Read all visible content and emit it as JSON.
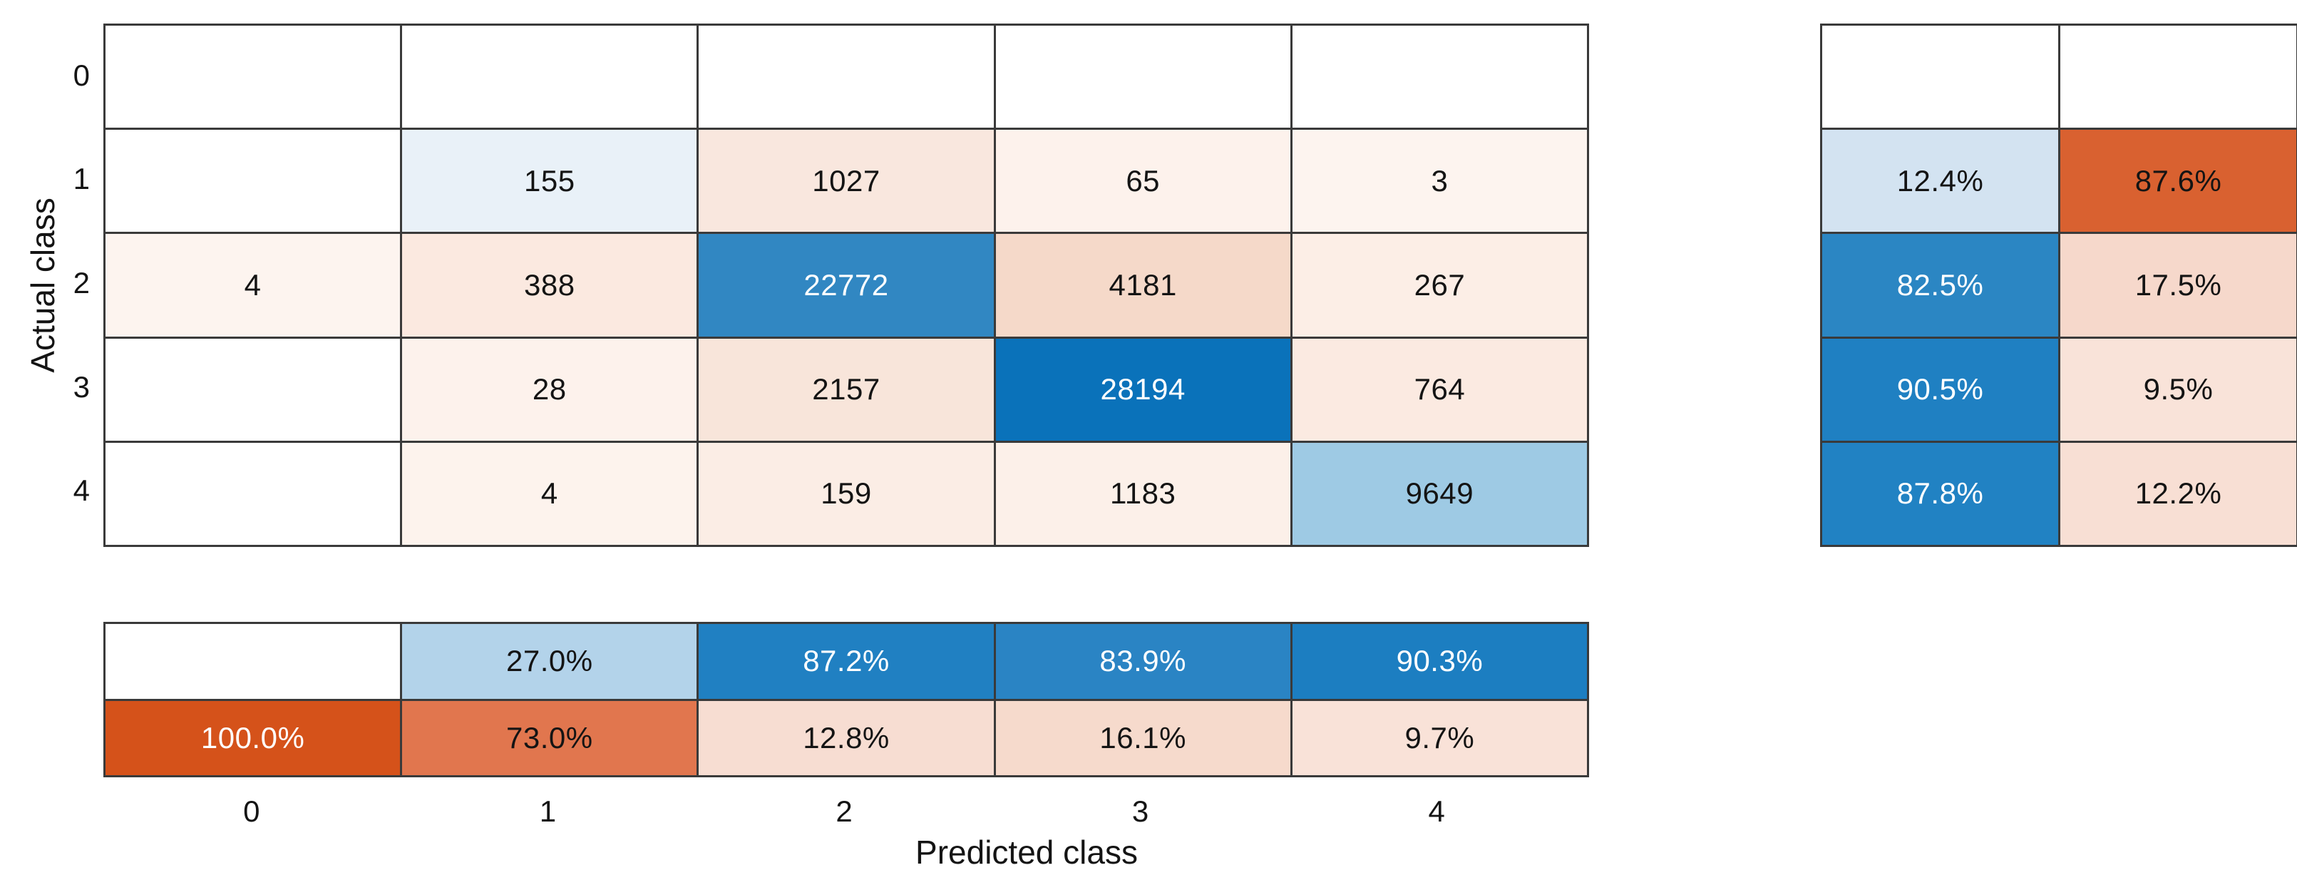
{
  "chart_data": {
    "type": "heatmap",
    "subtype": "confusion-matrix",
    "title": "",
    "xlabel": "Predicted class",
    "ylabel": "Actual class",
    "x_tick_labels": [
      "0",
      "1",
      "2",
      "3",
      "4"
    ],
    "y_tick_labels": [
      "0",
      "1",
      "2",
      "3",
      "4"
    ],
    "matrix_rows_are_actual_class": true,
    "matrix": [
      [
        null,
        null,
        null,
        null,
        null
      ],
      [
        null,
        155,
        1027,
        65,
        3
      ],
      [
        4,
        388,
        22772,
        4181,
        267
      ],
      [
        null,
        28,
        2157,
        28194,
        764
      ],
      [
        null,
        4,
        159,
        1183,
        9649
      ]
    ],
    "row_summary": {
      "description": "right column summary per actual class: correct % / incorrect %",
      "values": [
        [
          null,
          null
        ],
        [
          12.4,
          87.6
        ],
        [
          82.5,
          17.5
        ],
        [
          90.5,
          9.5
        ],
        [
          87.8,
          12.2
        ]
      ]
    },
    "column_summary": {
      "description": "bottom row summary per predicted class: correct % (top) / incorrect % (bottom)",
      "values": [
        [
          null,
          27.0,
          87.2,
          83.9,
          90.3
        ],
        [
          100.0,
          73.0,
          12.8,
          16.1,
          9.7
        ]
      ]
    },
    "grid_on": true,
    "legend": "none"
  },
  "style": {
    "background": "#ffffff",
    "grid_line_color": "#3a3a3a",
    "text_dark": "#141414",
    "text_light": "#ffffff",
    "main_bg": [
      [
        "#ffffff",
        "#ffffff",
        "#ffffff",
        "#ffffff",
        "#ffffff"
      ],
      [
        "#ffffff",
        "#e9f1f8",
        "#f9e7de",
        "#fdf2ec",
        "#fdf4ef"
      ],
      [
        "#fdf4ef",
        "#fbe9e0",
        "#3187c2",
        "#f5d9c9",
        "#fceee6"
      ],
      [
        "#ffffff",
        "#fdf2ec",
        "#f8e5da",
        "#0a72ba",
        "#fbeae1"
      ],
      [
        "#ffffff",
        "#fdf3ed",
        "#fbede5",
        "#fcf0e9",
        "#9ecae4"
      ]
    ],
    "main_fg": [
      [
        "#141414",
        "#141414",
        "#141414",
        "#141414",
        "#141414"
      ],
      [
        "#141414",
        "#141414",
        "#141414",
        "#141414",
        "#141414"
      ],
      [
        "#141414",
        "#141414",
        "#ffffff",
        "#141414",
        "#141414"
      ],
      [
        "#141414",
        "#141414",
        "#141414",
        "#ffffff",
        "#141414"
      ],
      [
        "#141414",
        "#141414",
        "#141414",
        "#141414",
        "#141414"
      ]
    ],
    "row_summary_bg": [
      [
        "#ffffff",
        "#ffffff"
      ],
      [
        "#d3e3f1",
        "#d96130"
      ],
      [
        "#2b86c3",
        "#f6d8cb"
      ],
      [
        "#1f80c2",
        "#f9e3d9"
      ],
      [
        "#2182c3",
        "#f8dfd4"
      ]
    ],
    "row_summary_fg": [
      [
        "#141414",
        "#141414"
      ],
      [
        "#141414",
        "#141414"
      ],
      [
        "#ffffff",
        "#141414"
      ],
      [
        "#ffffff",
        "#141414"
      ],
      [
        "#ffffff",
        "#141414"
      ]
    ],
    "column_summary_bg": [
      [
        "#ffffff",
        "#b3d3ea",
        "#2080c2",
        "#2a84c4",
        "#1c7ec1"
      ],
      [
        "#d5521a",
        "#e1764e",
        "#f7ddd2",
        "#f6dacc",
        "#f9e2d8"
      ]
    ],
    "column_summary_fg": [
      [
        "#141414",
        "#141414",
        "#ffffff",
        "#ffffff",
        "#ffffff"
      ],
      [
        "#ffffff",
        "#141414",
        "#141414",
        "#141414",
        "#141414"
      ]
    ]
  }
}
